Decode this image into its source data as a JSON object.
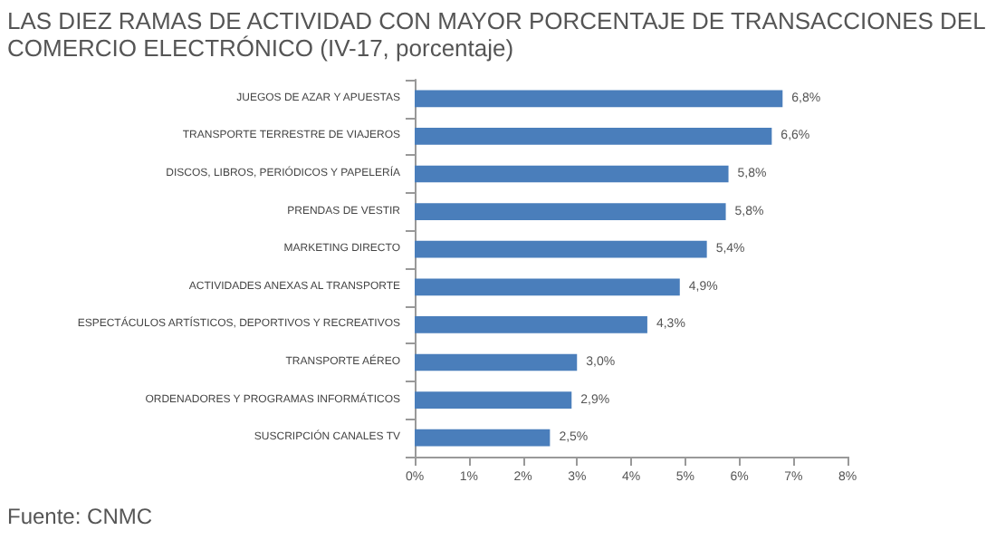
{
  "chart_data": {
    "type": "bar",
    "orientation": "horizontal",
    "title": "LAS DIEZ RAMAS DE ACTIVIDAD CON MAYOR PORCENTAJE DE TRANSACCIONES DEL COMERCIO ELECTRÓNICO (IV-17, porcentaje)",
    "categories": [
      "JUEGOS DE AZAR Y APUESTAS",
      "TRANSPORTE TERRESTRE DE VIAJEROS",
      "DISCOS, LIBROS, PERIÓDICOS Y PAPELERÍA",
      "PRENDAS DE VESTIR",
      "MARKETING DIRECTO",
      "ACTIVIDADES ANEXAS AL TRANSPORTE",
      "ESPECTÁCULOS ARTÍSTICOS, DEPORTIVOS Y RECREATIVOS",
      "TRANSPORTE AÉREO",
      "ORDENADORES Y PROGRAMAS INFORMÁTICOS",
      "SUSCRIPCIÓN CANALES TV"
    ],
    "values": [
      6.8,
      6.6,
      5.8,
      5.75,
      5.4,
      4.9,
      4.3,
      3.0,
      2.9,
      2.5
    ],
    "value_labels": [
      "6,8%",
      "6,6%",
      "5,8%",
      "5,8%",
      "5,4%",
      "4,9%",
      "4,3%",
      "3,0%",
      "2,9%",
      "2,5%"
    ],
    "color": "#4a7ebb",
    "xlim": [
      0,
      8
    ],
    "xticks": [
      {
        "value": 0,
        "label": "0%"
      },
      {
        "value": 1,
        "label": "1%"
      },
      {
        "value": 2,
        "label": "2%"
      },
      {
        "value": 3,
        "label": "3%"
      },
      {
        "value": 4,
        "label": "4%"
      },
      {
        "value": 5,
        "label": "5%"
      },
      {
        "value": 6,
        "label": "6%"
      },
      {
        "value": 7,
        "label": "7%"
      },
      {
        "value": 8,
        "label": "8%"
      }
    ],
    "grid": false,
    "annotations": [
      "Fuente: CNMC"
    ]
  }
}
